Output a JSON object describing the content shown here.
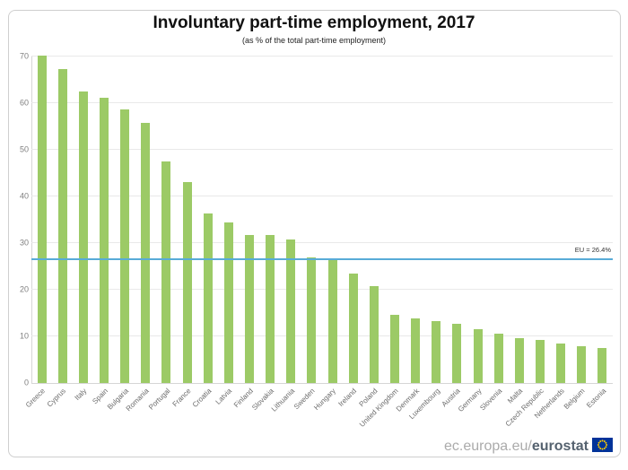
{
  "page": {
    "footer": {
      "url_prefix": "ec.europa.eu/",
      "brand": "eurostat"
    }
  },
  "chart_data": {
    "type": "bar",
    "title": "Involuntary part-time employment, 2017",
    "subtitle": "(as % of the total part-time employment)",
    "categories": [
      "Greece",
      "Cyprus",
      "Italy",
      "Spain",
      "Bulgaria",
      "Romania",
      "Portugal",
      "France",
      "Croatia",
      "Latvia",
      "Finland",
      "Slovakia",
      "Lithuania",
      "Sweden",
      "Hungary",
      "Ireland",
      "Poland",
      "United Kingdom",
      "Denmark",
      "Luxembourg",
      "Austria",
      "Germany",
      "Slovenia",
      "Malta",
      "Czech Republic",
      "Netherlands",
      "Belgium",
      "Estonia"
    ],
    "values": [
      70.2,
      67.4,
      62.5,
      61.1,
      58.7,
      55.8,
      47.5,
      43.1,
      36.3,
      34.4,
      31.8,
      31.7,
      30.7,
      27.0,
      26.8,
      23.5,
      20.8,
      14.6,
      13.9,
      13.3,
      12.6,
      11.6,
      10.6,
      9.6,
      9.2,
      8.4,
      7.8,
      7.5
    ],
    "xlabel": "",
    "ylabel": "",
    "ylim": [
      0,
      70
    ],
    "ytick_step": 10,
    "grid": true,
    "legend": "none",
    "bar_color": "#9cca66",
    "reference_line": {
      "value": 26.4,
      "label": "EU = 26.4%",
      "color": "#58abd8"
    }
  }
}
